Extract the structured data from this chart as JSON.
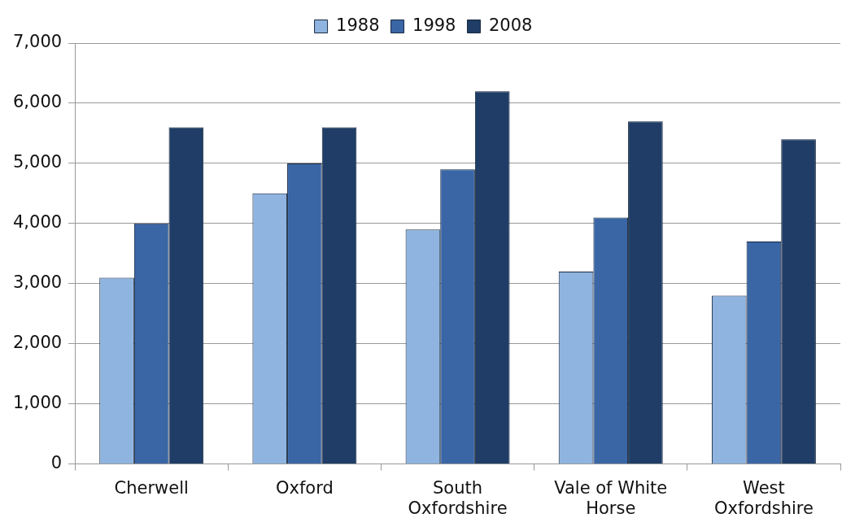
{
  "chart_data": {
    "type": "bar",
    "categories": [
      "Cherwell",
      "Oxford",
      "South Oxfordshire",
      "Vale of White Horse",
      "West Oxfordshire"
    ],
    "series": [
      {
        "name": "1988",
        "color": "#8fb4e0",
        "values": [
          3100,
          4500,
          3900,
          3200,
          2800
        ]
      },
      {
        "name": "1998",
        "color": "#3a66a6",
        "values": [
          4000,
          5000,
          4900,
          4100,
          3700
        ]
      },
      {
        "name": "2008",
        "color": "#1f3d66",
        "values": [
          5600,
          5600,
          6200,
          5700,
          5400
        ]
      }
    ],
    "ylim": [
      0,
      7000
    ],
    "yticks": [
      {
        "value": 0,
        "label": "0"
      },
      {
        "value": 1000,
        "label": "1,000"
      },
      {
        "value": 2000,
        "label": "2,000"
      },
      {
        "value": 3000,
        "label": "3,000"
      },
      {
        "value": 4000,
        "label": "4,000"
      },
      {
        "value": 5000,
        "label": "5,000"
      },
      {
        "value": 6000,
        "label": "6,000"
      },
      {
        "value": 7000,
        "label": "7,000"
      }
    ],
    "grid": "y",
    "legend": "top"
  }
}
